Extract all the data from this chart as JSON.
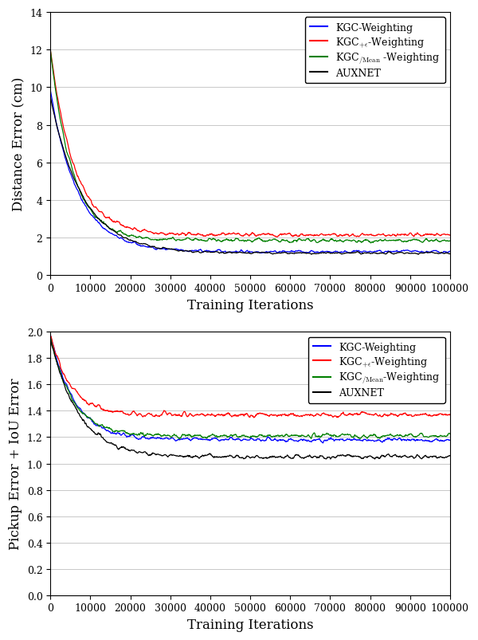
{
  "xlabel": "Training Iterations",
  "ylabel1": "Distance Error (cm)",
  "ylabel2": "Pickup Error + IoU Error",
  "xlim": [
    0,
    100000
  ],
  "ylim1": [
    0,
    14
  ],
  "ylim2": [
    0,
    2
  ],
  "yticks1": [
    0,
    2,
    4,
    6,
    8,
    10,
    12,
    14
  ],
  "yticks2": [
    0,
    0.2,
    0.4,
    0.6,
    0.8,
    1.0,
    1.2,
    1.4,
    1.6,
    1.8,
    2.0
  ],
  "xticks": [
    0,
    10000,
    20000,
    30000,
    40000,
    50000,
    60000,
    70000,
    80000,
    90000,
    100000
  ],
  "xtick_labels": [
    "0",
    "10000",
    "20000",
    "30000",
    "40000",
    "50000",
    "60000",
    "70000",
    "80000",
    "90000",
    "100000"
  ],
  "colors": {
    "blue": "#0000ff",
    "red": "#ff0000",
    "green": "#008000",
    "black": "#000000"
  },
  "n_points": 1000,
  "seed": 42,
  "figsize": [
    6.0,
    8.04
  ],
  "dpi": 100,
  "background_color": "#ffffff",
  "linewidth": 0.9,
  "plot1": {
    "blue_start": 9.8,
    "blue_end": 1.25,
    "blue_knee": 0.07,
    "blue_noise": 0.1,
    "red_start": 12.0,
    "red_end": 2.15,
    "red_knee": 0.06,
    "red_noise": 0.13,
    "green_start": 12.0,
    "green_end": 1.85,
    "green_knee": 0.055,
    "green_noise": 0.13,
    "black_start": 9.5,
    "black_end": 1.18,
    "black_knee": 0.08,
    "black_noise": 0.07
  },
  "plot2": {
    "blue_start": 1.98,
    "blue_end": 1.18,
    "blue_knee": 0.06,
    "blue_noise": 0.02,
    "red_start": 1.98,
    "red_end": 1.37,
    "red_knee": 0.05,
    "red_noise": 0.022,
    "green_start": 1.97,
    "green_end": 1.21,
    "green_knee": 0.055,
    "green_noise": 0.022,
    "black_start": 1.95,
    "black_end": 1.05,
    "black_knee": 0.07,
    "black_noise": 0.02
  }
}
